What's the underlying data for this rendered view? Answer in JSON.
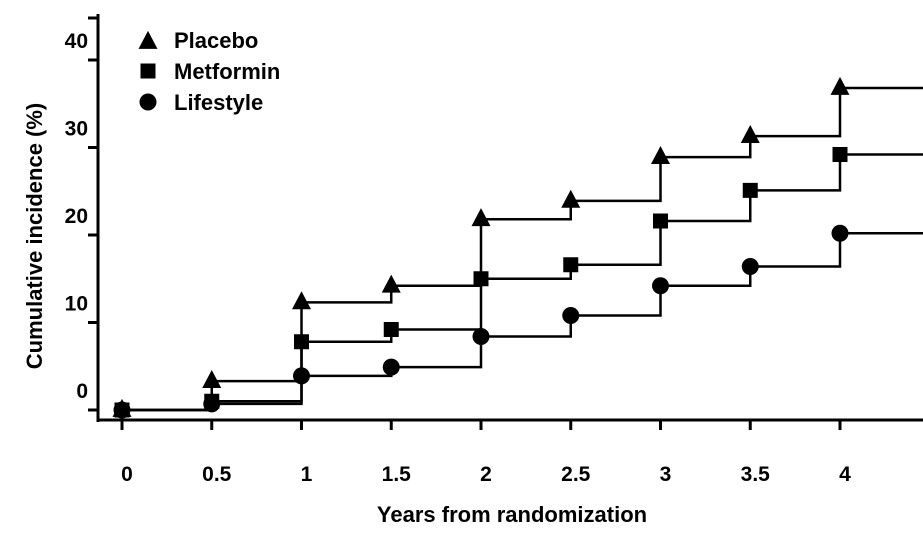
{
  "chart_data": {
    "type": "line",
    "step": true,
    "xlabel": "Years from randomization",
    "ylabel": "Cumulative incidence (%)",
    "x_ticks": [
      0,
      0.5,
      1,
      1.5,
      2,
      2.5,
      3,
      3.5,
      4
    ],
    "x_tick_labels": [
      "0",
      "0.5",
      "1",
      "1.5",
      "2",
      "2.5",
      "3",
      "3.5",
      "4"
    ],
    "y_ticks": [
      0,
      10,
      20,
      30,
      40
    ],
    "y_tick_labels": [
      "0",
      "10",
      "20",
      "30",
      "40"
    ],
    "xlim": [
      0,
      4.45
    ],
    "ylim": [
      -2,
      44
    ],
    "legend_position": "top-left",
    "series": [
      {
        "name": "Placebo",
        "marker": "triangle",
        "x": [
          0,
          0.5,
          1,
          1.5,
          2,
          2.5,
          3,
          3.5,
          4
        ],
        "values": [
          0,
          3.3,
          12.3,
          14.2,
          21.8,
          23.9,
          28.9,
          31.3,
          36.8
        ]
      },
      {
        "name": "Metformin",
        "marker": "square",
        "x": [
          0,
          0.5,
          1,
          1.5,
          2,
          2.5,
          3,
          3.5,
          4
        ],
        "values": [
          0,
          1.0,
          7.8,
          9.2,
          15.0,
          16.6,
          21.6,
          25.1,
          29.2
        ]
      },
      {
        "name": "Lifestyle",
        "marker": "circle",
        "x": [
          0,
          0.5,
          1,
          1.5,
          2,
          2.5,
          3,
          3.5,
          4
        ],
        "values": [
          0,
          0.7,
          3.9,
          4.9,
          8.4,
          10.8,
          14.2,
          16.4,
          20.2
        ]
      }
    ]
  }
}
